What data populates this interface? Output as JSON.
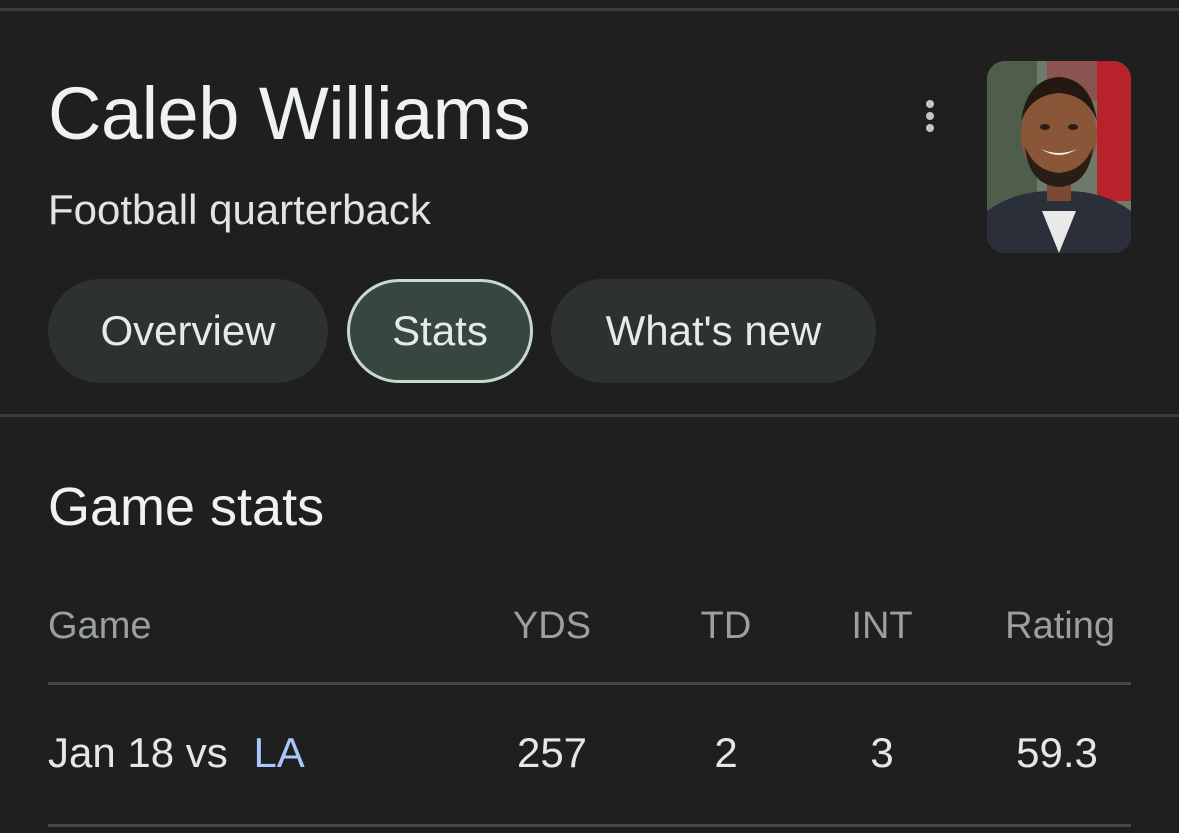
{
  "header": {
    "title": "Caleb Williams",
    "subtitle": "Football quarterback"
  },
  "tabs": [
    {
      "label": "Overview",
      "active": false
    },
    {
      "label": "Stats",
      "active": true
    },
    {
      "label": "What's new",
      "active": false
    }
  ],
  "game_stats": {
    "section_title": "Game stats",
    "columns": [
      "Game",
      "YDS",
      "TD",
      "INT",
      "Rating"
    ],
    "rows": [
      {
        "date_vs": "Jan 18 vs",
        "opponent": "LA",
        "yds": "257",
        "td": "2",
        "int": "3",
        "rating": "59.3"
      }
    ]
  },
  "icons": {
    "more": "more-vert-icon"
  },
  "colors": {
    "background": "#1f1f1f",
    "link": "#a8c7fa",
    "chip_active_border": "#c5d9cc"
  }
}
